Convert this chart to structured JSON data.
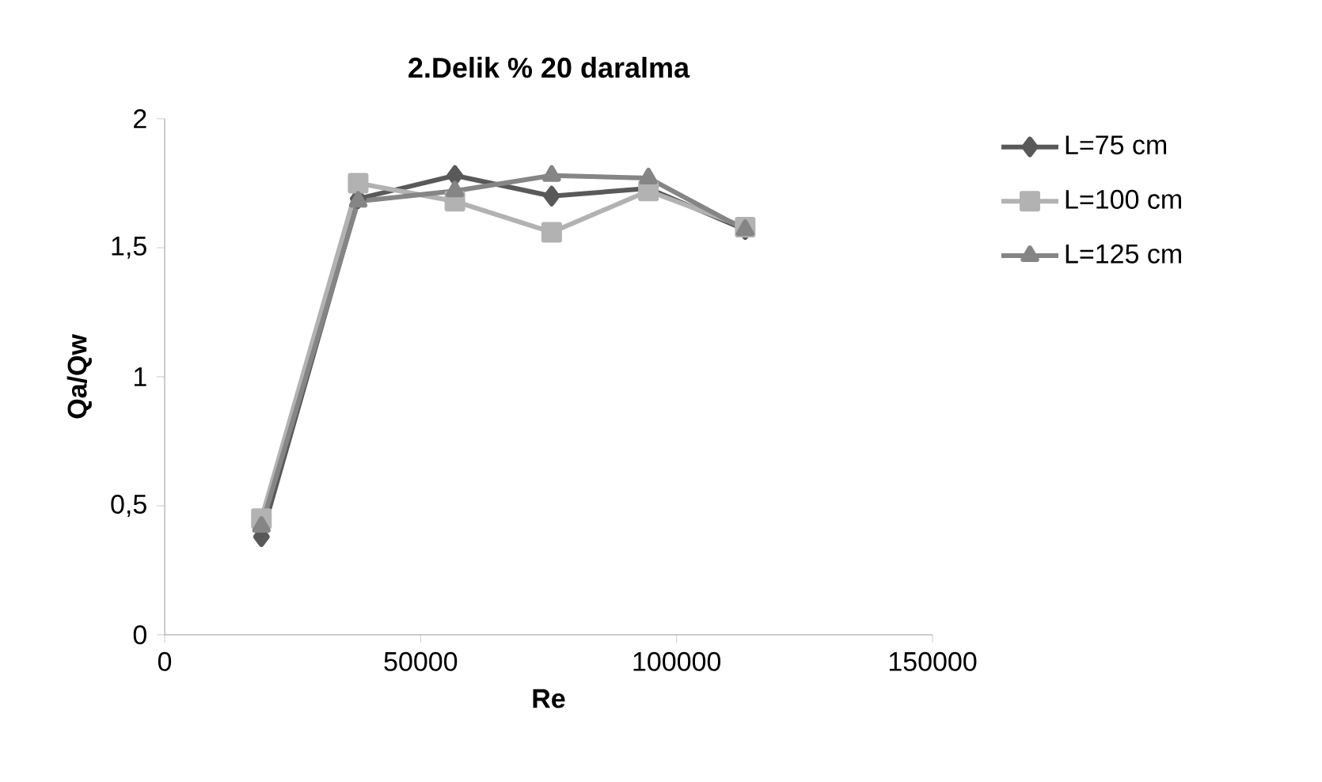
{
  "chart_data": {
    "type": "line",
    "title": "2.Delik % 20 daralma",
    "xlabel": "Re",
    "ylabel": "Qa/Qw",
    "x": [
      18900,
      37800,
      56700,
      75600,
      94500,
      113400
    ],
    "series": [
      {
        "name": "L=75 cm",
        "color": "#595959",
        "marker": "diamond",
        "values": [
          0.38,
          1.69,
          1.78,
          1.7,
          1.73,
          1.57
        ]
      },
      {
        "name": "L=100 cm",
        "color": "#b2b2b2",
        "marker": "square",
        "values": [
          0.45,
          1.75,
          1.68,
          1.56,
          1.72,
          1.58
        ]
      },
      {
        "name": "L=125 cm",
        "color": "#858585",
        "marker": "triangle",
        "values": [
          0.42,
          1.68,
          1.72,
          1.78,
          1.77,
          1.57
        ]
      }
    ],
    "xlim": [
      0,
      150000
    ],
    "xticks": [
      0,
      50000,
      100000,
      150000
    ],
    "ylim": [
      0,
      2
    ],
    "yticks": [
      0,
      {
        "value": 0.5,
        "label": "0,5"
      },
      1,
      {
        "value": 1.5,
        "label": "1,5"
      },
      2
    ],
    "grid": false,
    "legend": "right",
    "line_style": "solid"
  }
}
